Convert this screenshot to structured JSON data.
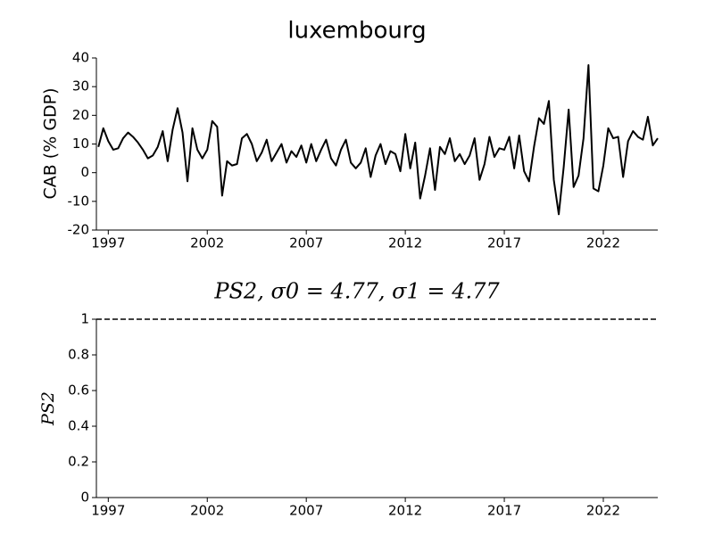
{
  "chart_data": [
    {
      "type": "line",
      "title": "luxembourg",
      "y_label": "CAB (% GDP)",
      "x": [
        1996.5,
        1996.75,
        1997,
        1997.25,
        1997.5,
        1997.75,
        1998,
        1998.25,
        1998.5,
        1998.75,
        1999,
        1999.25,
        1999.5,
        1999.75,
        2000,
        2000.25,
        2000.5,
        2000.75,
        2001,
        2001.25,
        2001.5,
        2001.75,
        2002,
        2002.25,
        2002.5,
        2002.75,
        2003,
        2003.25,
        2003.5,
        2003.75,
        2004,
        2004.25,
        2004.5,
        2004.75,
        2005,
        2005.25,
        2005.5,
        2005.75,
        2006,
        2006.25,
        2006.5,
        2006.75,
        2007,
        2007.25,
        2007.5,
        2007.75,
        2008,
        2008.25,
        2008.5,
        2008.75,
        2009,
        2009.25,
        2009.5,
        2009.75,
        2010,
        2010.25,
        2010.5,
        2010.75,
        2011,
        2011.25,
        2011.5,
        2011.75,
        2012,
        2012.25,
        2012.5,
        2012.75,
        2013,
        2013.25,
        2013.5,
        2013.75,
        2014,
        2014.25,
        2014.5,
        2014.75,
        2015,
        2015.25,
        2015.5,
        2015.75,
        2016,
        2016.25,
        2016.5,
        2016.75,
        2017,
        2017.25,
        2017.5,
        2017.75,
        2018,
        2018.25,
        2018.5,
        2018.75,
        2019,
        2019.25,
        2019.5,
        2019.75,
        2020,
        2020.25,
        2020.5,
        2020.75,
        2021,
        2021.25,
        2021.5,
        2021.75,
        2022,
        2022.25,
        2022.5,
        2022.75,
        2023,
        2023.25,
        2023.5,
        2023.75,
        2024,
        2024.25,
        2024.5,
        2024.75
      ],
      "series": [
        {
          "color": "#000000",
          "values": [
            9,
            15.5,
            11,
            8,
            8.5,
            12,
            14,
            12.5,
            10.5,
            8,
            5,
            6,
            9,
            14.5,
            4,
            15,
            22.5,
            14,
            -3,
            15.5,
            8,
            5,
            8,
            18,
            16,
            -8,
            4,
            2.5,
            3,
            12,
            13.5,
            10,
            4,
            7,
            11.5,
            4,
            7,
            10,
            3.5,
            7.5,
            5.5,
            9.5,
            3.5,
            10,
            4,
            8,
            11.5,
            5,
            2.5,
            8,
            11.5,
            3.5,
            1.5,
            3.5,
            8.5,
            -1.5,
            6,
            10,
            3,
            7.5,
            6.5,
            0.5,
            13.5,
            1.5,
            10.5,
            -9,
            -1,
            8.5,
            -6,
            9,
            6.5,
            12,
            4,
            6.5,
            3,
            6,
            12,
            -2.5,
            3,
            12.5,
            5.5,
            8.5,
            8,
            12.5,
            1.5,
            13,
            0.5,
            -3,
            9,
            19,
            17,
            25,
            -2.5,
            -14.5,
            2,
            22,
            -5,
            -1,
            12,
            37.5,
            -5.5,
            -6.5,
            2.5,
            15.5,
            12,
            12.5,
            -1.5,
            11,
            14.5,
            12.5,
            11.5,
            19.5,
            9.5,
            12
          ]
        }
      ],
      "xlim": [
        1996.4,
        2024.75
      ],
      "xticks": [
        1997,
        2002,
        2007,
        2012,
        2017,
        2022
      ],
      "ylim": [
        -20,
        40
      ],
      "yticks": [
        -20,
        -10,
        0,
        10,
        20,
        30,
        40
      ]
    },
    {
      "type": "line",
      "title": "PS2, σ0 = 4.77, σ1 = 4.77",
      "y_label": "PS2",
      "x": [
        1996.4,
        2024.75
      ],
      "series": [
        {
          "color": "#000000",
          "linestyle": "dashed",
          "values": [
            1,
            1
          ]
        }
      ],
      "xlim": [
        1996.4,
        2024.75
      ],
      "xticks": [
        1997,
        2002,
        2007,
        2012,
        2017,
        2022
      ],
      "ylim": [
        0,
        1
      ],
      "yticks": [
        0,
        0.2,
        0.4,
        0.6,
        0.8,
        1
      ]
    }
  ]
}
